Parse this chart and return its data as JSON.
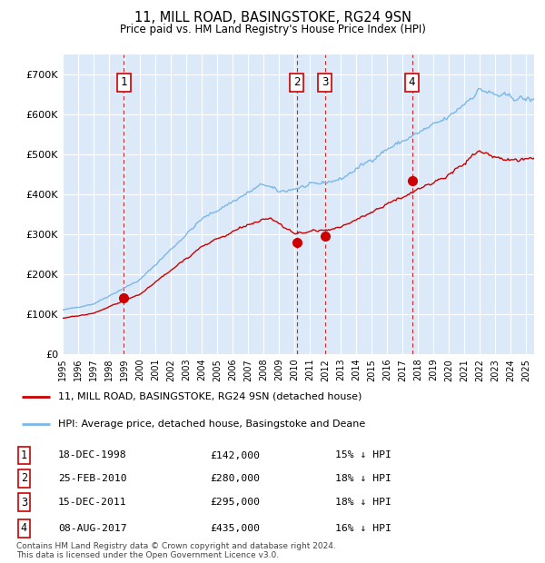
{
  "title": "11, MILL ROAD, BASINGSTOKE, RG24 9SN",
  "subtitle": "Price paid vs. HM Land Registry's House Price Index (HPI)",
  "xlim_start": 1995.0,
  "xlim_end": 2025.5,
  "ylim": [
    0,
    750000
  ],
  "yticks": [
    0,
    100000,
    200000,
    300000,
    400000,
    500000,
    600000,
    700000
  ],
  "ytick_labels": [
    "£0",
    "£100K",
    "£200K",
    "£300K",
    "£400K",
    "£500K",
    "£600K",
    "£700K"
  ],
  "bg_color": "#dce9f8",
  "grid_color": "white",
  "hpi_color": "#7ab8e8",
  "price_color": "#cc0000",
  "marker_color": "#cc0000",
  "dashed_line_color": "#cc0000",
  "transactions": [
    {
      "num": 1,
      "date": "18-DEC-1998",
      "price": 142000,
      "year": 1998.96,
      "pct": "15%"
    },
    {
      "num": 2,
      "date": "25-FEB-2010",
      "price": 280000,
      "year": 2010.15,
      "pct": "18%"
    },
    {
      "num": 3,
      "date": "15-DEC-2011",
      "price": 295000,
      "year": 2011.96,
      "pct": "18%"
    },
    {
      "num": 4,
      "date": "08-AUG-2017",
      "price": 435000,
      "year": 2017.6,
      "pct": "16%"
    }
  ],
  "legend_entries": [
    {
      "label": "11, MILL ROAD, BASINGSTOKE, RG24 9SN (detached house)",
      "color": "#cc0000"
    },
    {
      "label": "HPI: Average price, detached house, Basingstoke and Deane",
      "color": "#7ab8e8"
    }
  ],
  "footer": "Contains HM Land Registry data © Crown copyright and database right 2024.\nThis data is licensed under the Open Government Licence v3.0.",
  "table_rows": [
    {
      "num": 1,
      "date": "18-DEC-1998",
      "price": "£142,000",
      "pct": "15% ↓ HPI"
    },
    {
      "num": 2,
      "date": "25-FEB-2010",
      "price": "£280,000",
      "pct": "18% ↓ HPI"
    },
    {
      "num": 3,
      "date": "15-DEC-2011",
      "price": "£295,000",
      "pct": "18% ↓ HPI"
    },
    {
      "num": 4,
      "date": "08-AUG-2017",
      "price": "£435,000",
      "pct": "16% ↓ HPI"
    }
  ]
}
